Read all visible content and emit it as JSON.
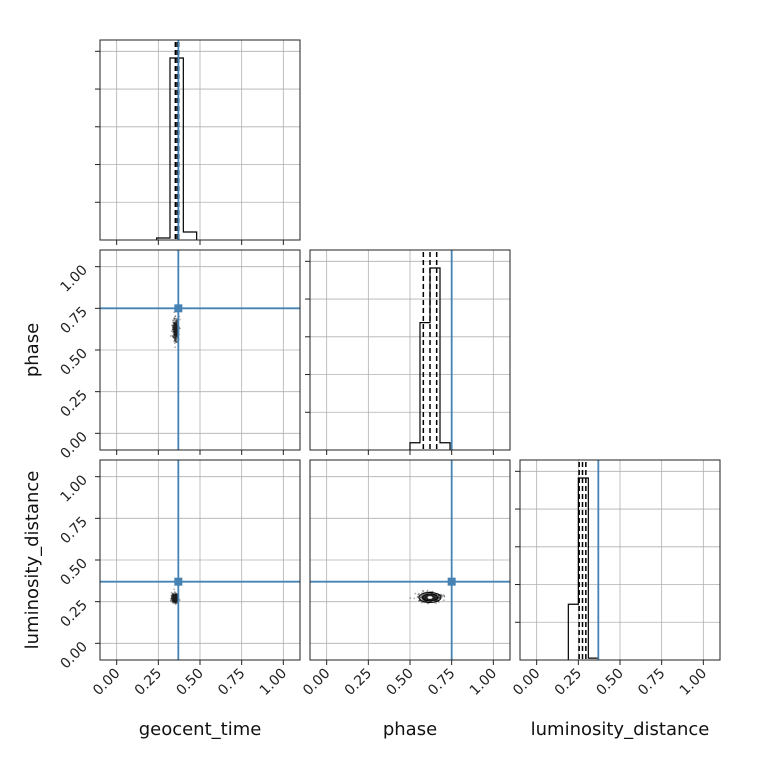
{
  "chart_data": {
    "type": "corner",
    "parameters": [
      "geocent_time",
      "phase",
      "luminosity_distance"
    ],
    "axis_range": [
      -0.1,
      1.1
    ],
    "ticks": [
      0.0,
      0.25,
      0.5,
      0.75,
      1.0
    ],
    "tick_labels": [
      "0.00",
      "0.25",
      "0.50",
      "0.75",
      "1.00"
    ],
    "grid": true,
    "colors": {
      "truth": "#4682b4",
      "histogram": "#000000",
      "samples": "#000000"
    },
    "truths": {
      "geocent_time": 0.37,
      "phase": 0.75,
      "luminosity_distance": 0.37
    },
    "diagonal": [
      {
        "parameter": "geocent_time",
        "bin_edges": [
          0.24,
          0.32,
          0.4,
          0.48
        ],
        "counts": [
          0.01,
          0.91,
          0.04
        ],
        "quantiles": [
          0.352,
          0.362,
          0.372
        ],
        "truth_line": false
      },
      {
        "parameter": "phase",
        "bin_edges": [
          0.5,
          0.56,
          0.62,
          0.68,
          0.74
        ],
        "counts": [
          0.04,
          0.7,
          1.0,
          0.04
        ],
        "quantiles": [
          0.58,
          0.62,
          0.66
        ],
        "truth_line": true
      },
      {
        "parameter": "luminosity_distance",
        "bin_edges": [
          0.19,
          0.25,
          0.31,
          0.37
        ],
        "counts": [
          0.3,
          0.98,
          0.01
        ],
        "quantiles": [
          0.255,
          0.275,
          0.295
        ],
        "truth_line": true
      }
    ],
    "scatter_panels": [
      {
        "x": "geocent_time",
        "y": "phase",
        "center": [
          0.355,
          0.62
        ],
        "spread": [
          0.02,
          0.07
        ],
        "contour_levels": []
      },
      {
        "x": "geocent_time",
        "y": "luminosity_distance",
        "center": [
          0.35,
          0.27
        ],
        "spread": [
          0.02,
          0.03
        ],
        "contour_levels": []
      },
      {
        "x": "phase",
        "y": "luminosity_distance",
        "center": [
          0.62,
          0.275
        ],
        "spread": [
          0.07,
          0.03
        ],
        "contour_levels": [
          0.5,
          1.0
        ]
      }
    ]
  }
}
